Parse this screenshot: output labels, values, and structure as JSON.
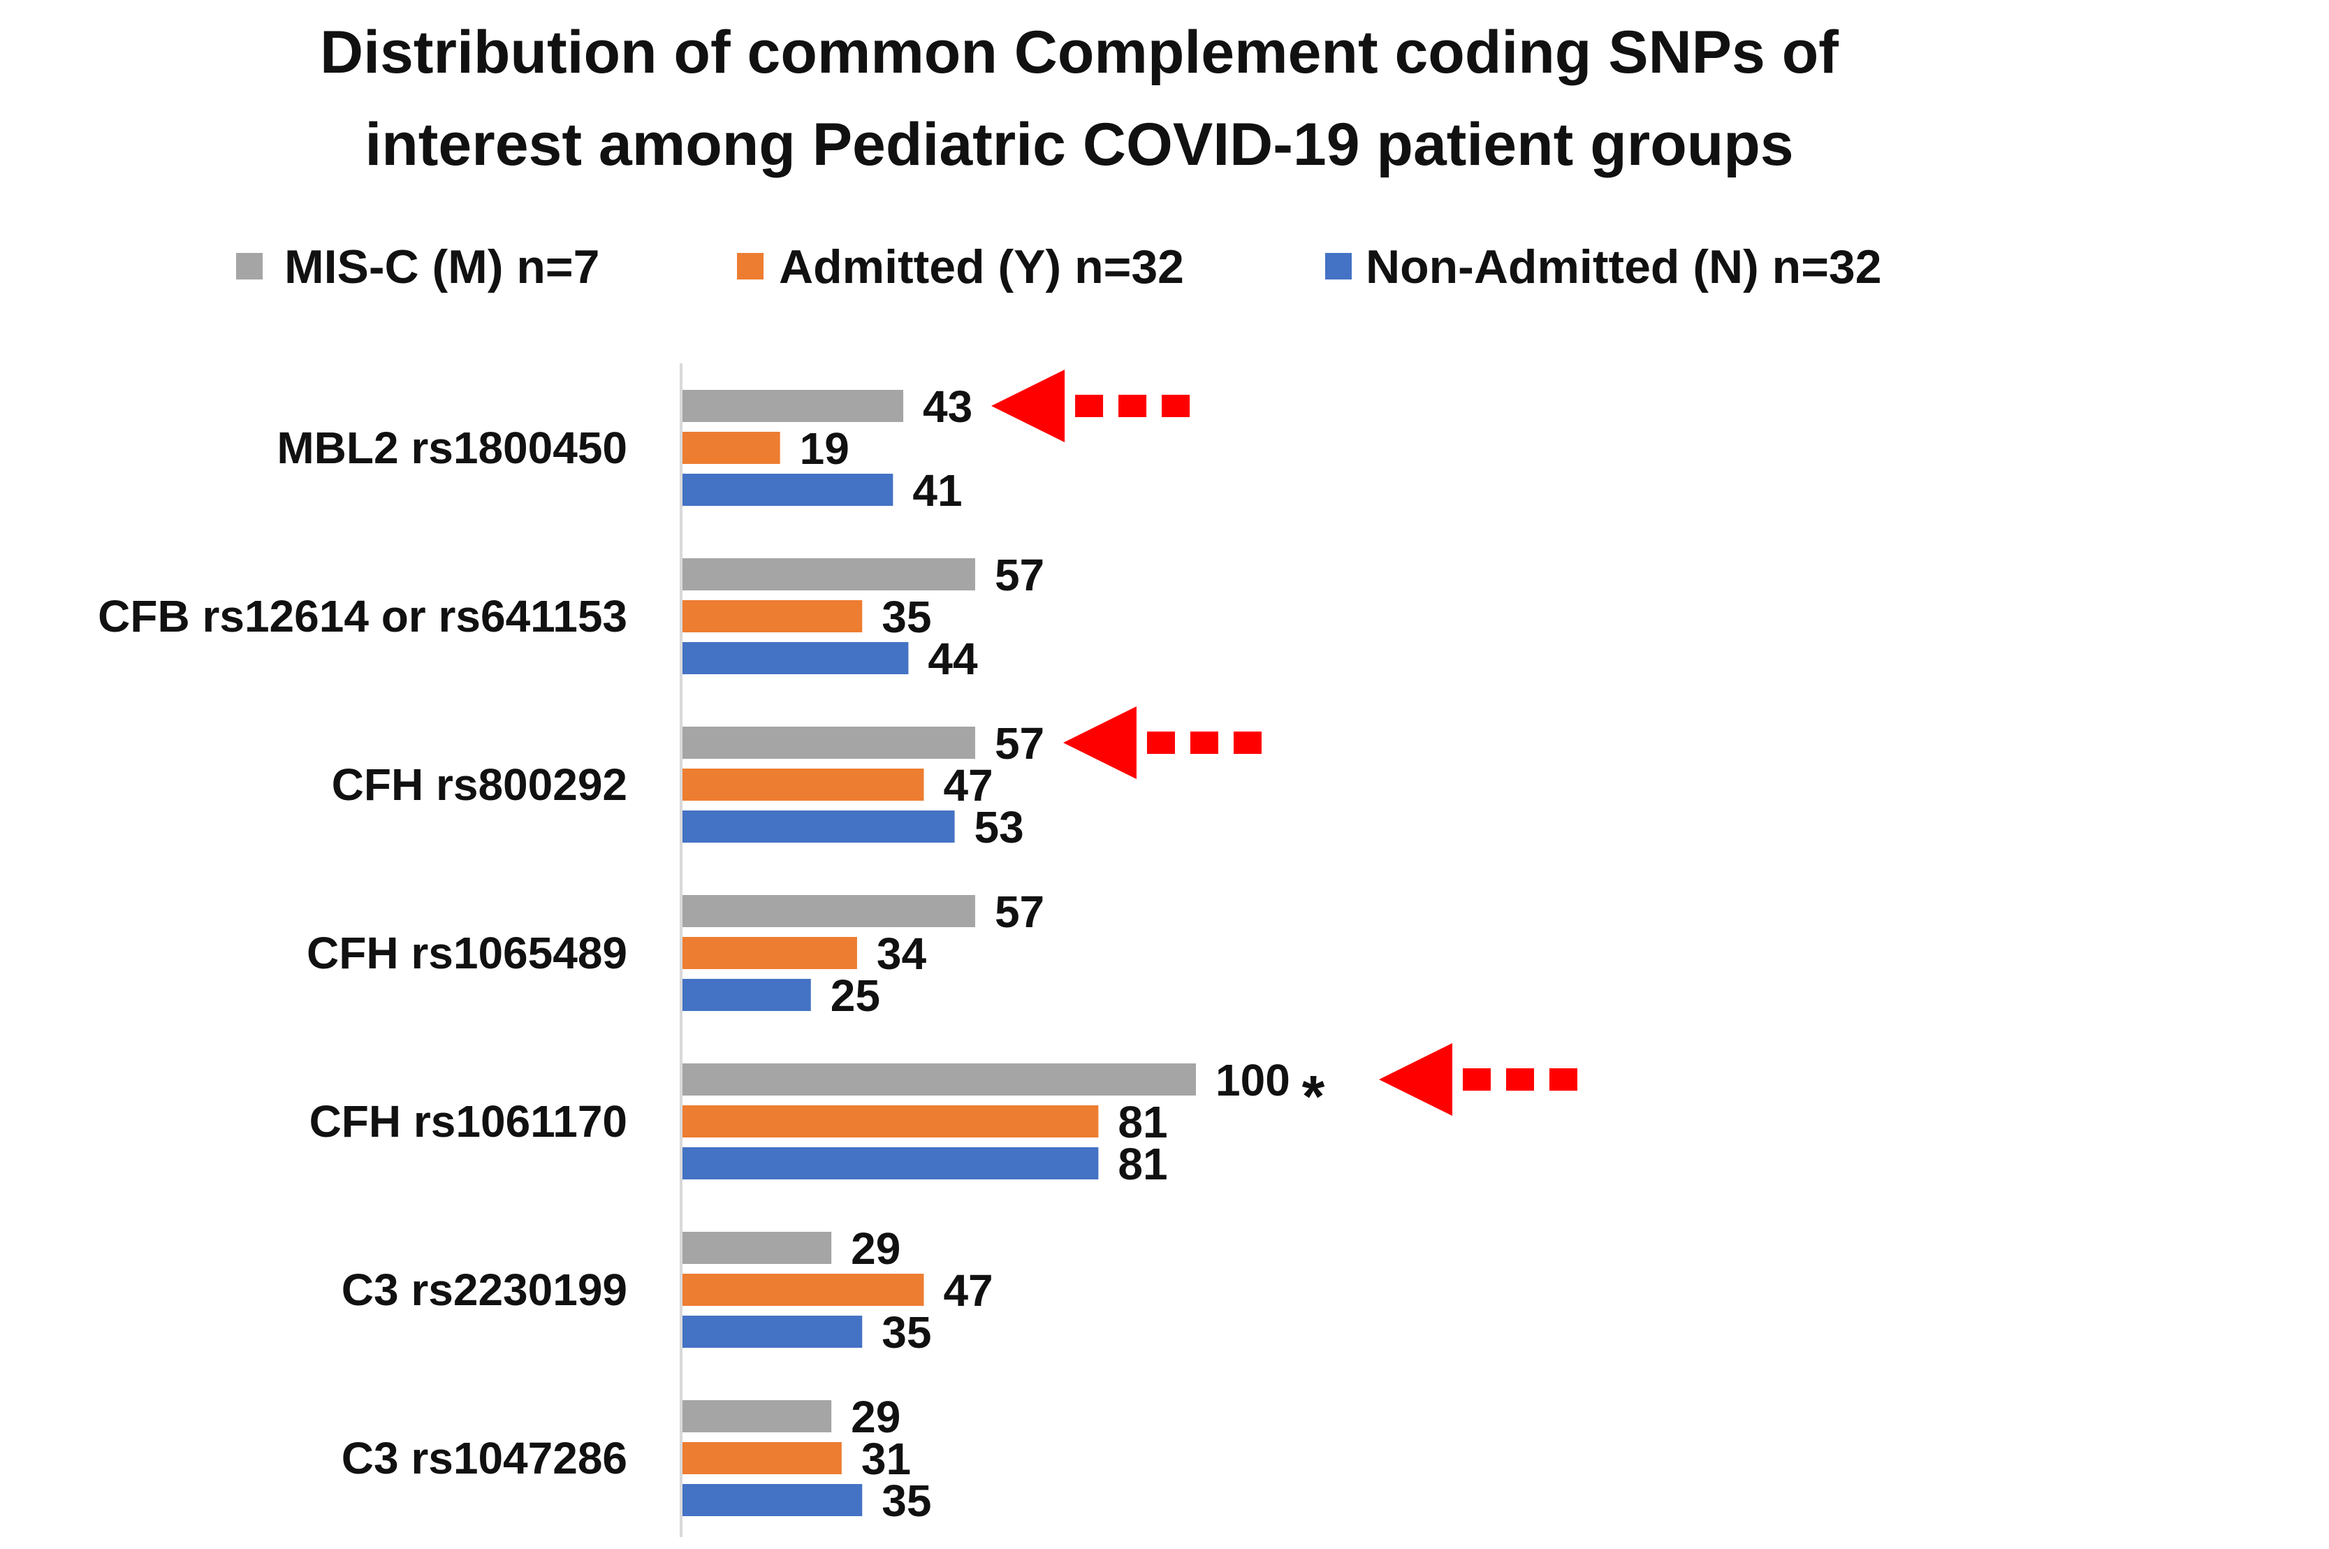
{
  "chart_data": {
    "type": "bar",
    "orientation": "horizontal",
    "title": "Distribution of common Complement coding SNPs of interest among Pediatric COVID-19 patient groups",
    "title_lines": [
      "Distribution of common Complement coding SNPs of",
      "interest among Pediatric COVID-19 patient groups"
    ],
    "xlabel": "",
    "ylabel": "",
    "xlim": [
      0,
      100
    ],
    "grid": false,
    "legend_position": "top",
    "categories": [
      "MBL2 rs1800450",
      "CFB rs12614 or rs641153",
      "CFH rs800292",
      "CFH rs1065489",
      "CFH rs1061170",
      "C3 rs2230199",
      "C3 rs1047286"
    ],
    "series": [
      {
        "name": "MIS-C (M) n=7",
        "color": "#a5a5a5",
        "values": [
          43,
          57,
          57,
          57,
          100,
          29,
          29
        ]
      },
      {
        "name": "Admitted (Y) n=32",
        "color": "#ed7d31",
        "values": [
          19,
          35,
          47,
          34,
          81,
          47,
          31
        ]
      },
      {
        "name": "Non-Admitted (N) n=32",
        "color": "#4472c4",
        "values": [
          41,
          44,
          53,
          25,
          81,
          35,
          35
        ]
      }
    ],
    "annotations": {
      "highlight_arrows": [
        {
          "category": "MBL2 rs1800450",
          "series": "MIS-C (M) n=7",
          "icon": "red-dashed-arrow-icon"
        },
        {
          "category": "CFH rs800292",
          "series": "MIS-C (M) n=7",
          "icon": "red-dashed-arrow-icon"
        },
        {
          "category": "CFH rs1061170",
          "series": "MIS-C (M) n=7",
          "icon": "red-dashed-arrow-icon"
        }
      ],
      "significance_marker": {
        "category": "CFH rs1061170",
        "series": "MIS-C (M) n=7",
        "symbol": "*"
      },
      "arrow_color": "#ff0000"
    }
  }
}
